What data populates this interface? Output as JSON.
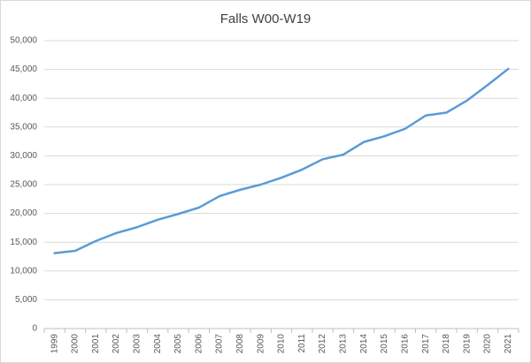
{
  "chart_data": {
    "type": "line",
    "title": "Falls W00-W19",
    "categories": [
      "1999",
      "2000",
      "2001",
      "2002",
      "2003",
      "2004",
      "2005",
      "2006",
      "2007",
      "2008",
      "2009",
      "2010",
      "2011",
      "2012",
      "2013",
      "2014",
      "2015",
      "2016",
      "2017",
      "2018",
      "2019",
      "2020",
      "2021"
    ],
    "values": [
      13100,
      13500,
      15200,
      16600,
      17600,
      18900,
      19900,
      21000,
      23000,
      24100,
      25000,
      26200,
      27600,
      29400,
      30200,
      32400,
      33400,
      34700,
      37000,
      37500,
      39600,
      42300,
      45100
    ],
    "color": "#5b9bd5",
    "ylim": [
      0,
      50000
    ],
    "yticks": [
      0,
      {
        "value": 5000,
        "label": "5,000"
      },
      {
        "value": 10000,
        "label": "10,000"
      },
      {
        "value": 15000,
        "label": "15,000"
      },
      {
        "value": 20000,
        "label": "20,000"
      },
      {
        "value": 25000,
        "label": "25,000"
      },
      {
        "value": 30000,
        "label": "30,000"
      },
      {
        "value": 35000,
        "label": "35,000"
      },
      {
        "value": 40000,
        "label": "40,000"
      },
      {
        "value": 45000,
        "label": "45,000"
      },
      {
        "value": 50000,
        "label": "50,000"
      }
    ],
    "grid": true
  }
}
